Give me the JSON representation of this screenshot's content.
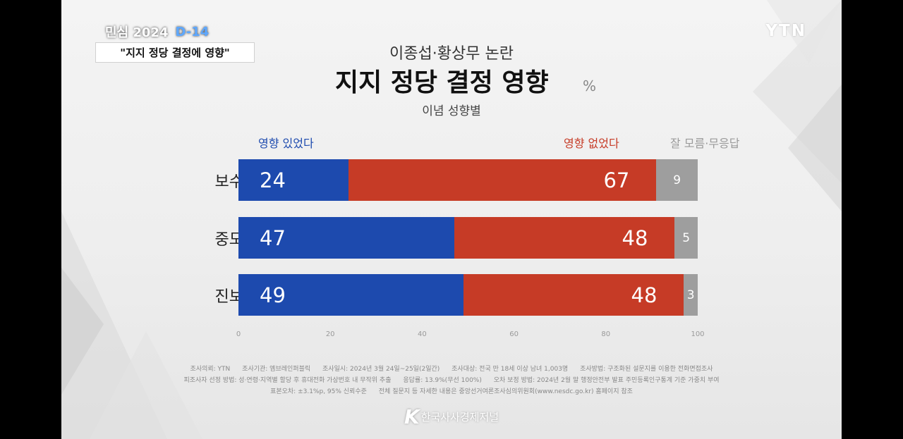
{
  "banner": {
    "tag": "민심 2024",
    "dday": "D-14",
    "headline": "\"지지 정당 결정에 영향\""
  },
  "logo": "YTN",
  "footer_logo": "한국사사경제저널",
  "colors": {
    "agree": "#1d4aae",
    "disagree": "#c63b26",
    "unknown": "#9e9e9e"
  },
  "chart_data": {
    "type": "bar",
    "stacked": true,
    "orientation": "horizontal",
    "title_top": "이종섭·황상무 논란",
    "title": "지지 정당 결정 영향",
    "unit": "%",
    "subtitle": "이념 성향별",
    "categories": [
      "보수",
      "중도",
      "진보"
    ],
    "series": [
      {
        "name": "영향 있었다",
        "values": [
          24,
          47,
          49
        ]
      },
      {
        "name": "영향 없었다",
        "values": [
          67,
          48,
          48
        ]
      },
      {
        "name": "잘 모름·무응답",
        "values": [
          9,
          5,
          3
        ]
      }
    ],
    "xlim": [
      0,
      100
    ],
    "xticks": [
      "0",
      "20",
      "40",
      "60",
      "80",
      "100"
    ],
    "legend": "top"
  },
  "footnotes": [
    [
      "조사의뢰: YTN",
      "조사기관: 엠브레인퍼블릭",
      "조사일시: 2024년 3월 24일~25일(2일간)",
      "조사대상: 전국 만 18세 이상 남녀 1,003명",
      "조사방법: 구조화된 설문지를 이용한 전화면접조사"
    ],
    [
      "피조사자 선정 방법: 성·연령·지역별 할당 후 휴대전화 가상번호 내 무작위 추출",
      "응답률: 13.9%(무선 100%)",
      "오차 보정 방법: 2024년 2월 말 행정안전부 발표 주민등록인구통계 기준 가중치 부여"
    ],
    [
      "표본오차: ±3.1%p, 95% 신뢰수준",
      "전체 질문지 등 자세한 내용은 중앙선거여론조사심의위원회(www.nesdc.go.kr) 홈페이지 참조"
    ]
  ]
}
